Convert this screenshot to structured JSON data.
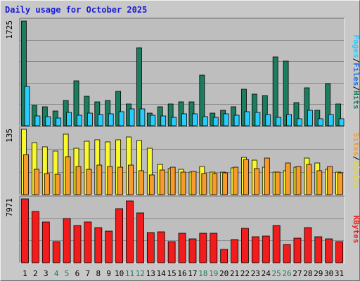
{
  "title": "Daily usage for October 2025",
  "colors": {
    "hits": "#1c7e60",
    "files": "#29ccfc",
    "pages": "#29ccfc",
    "visits": "#f8f82c",
    "sites": "#f89a2c",
    "kbytes": "#f21c1c",
    "weekend_label": "#1c7e60",
    "weekday_label": "#000000",
    "panel_bg": "#bebebe",
    "frame_bg": "#c8c8c8"
  },
  "right_labels": {
    "top": [
      {
        "text": "Pages",
        "color": "#29ccfc"
      },
      {
        "text": "/",
        "color": "#000000"
      },
      {
        "text": "Files",
        "color": "#1a6ee6"
      },
      {
        "text": "/",
        "color": "#000000"
      },
      {
        "text": "Hits",
        "color": "#1c7e60"
      }
    ],
    "middle": [
      {
        "text": "Sites",
        "color": "#f89a2c"
      },
      {
        "text": "/",
        "color": "#000000"
      },
      {
        "text": "Visits",
        "color": "#e8d81c"
      }
    ],
    "bottom": [
      {
        "text": "KBytes",
        "color": "#f21c1c"
      }
    ]
  },
  "chart_data": [
    {
      "type": "bar",
      "panel": "hits-files-pages",
      "y_max_label": "1725",
      "ylim": [
        0,
        1725
      ],
      "categories": [
        "1",
        "2",
        "3",
        "4",
        "5",
        "6",
        "7",
        "8",
        "9",
        "10",
        "11",
        "12",
        "13",
        "14",
        "15",
        "16",
        "17",
        "18",
        "19",
        "20",
        "21",
        "22",
        "23",
        "24",
        "25",
        "26",
        "27",
        "28",
        "29",
        "30",
        "31"
      ],
      "series": [
        {
          "name": "Hits",
          "values": [
            1725,
            340,
            310,
            240,
            420,
            740,
            490,
            390,
            420,
            570,
            360,
            1290,
            210,
            310,
            360,
            390,
            390,
            830,
            210,
            250,
            310,
            600,
            520,
            500,
            1140,
            1060,
            380,
            620,
            250,
            700,
            360
          ]
        },
        {
          "name": "Files",
          "values": [
            650,
            160,
            150,
            130,
            220,
            170,
            210,
            190,
            200,
            230,
            280,
            280,
            170,
            160,
            140,
            200,
            200,
            150,
            140,
            200,
            170,
            230,
            220,
            180,
            140,
            180,
            110,
            250,
            110,
            180,
            110
          ]
        }
      ],
      "weekend_days": [
        "4",
        "5",
        "11",
        "12",
        "18",
        "19",
        "25",
        "26"
      ]
    },
    {
      "type": "bar",
      "panel": "visits-sites",
      "y_max_label": "135",
      "ylim": [
        0,
        135
      ],
      "categories": [
        "1",
        "2",
        "3",
        "4",
        "5",
        "6",
        "7",
        "8",
        "9",
        "10",
        "11",
        "12",
        "13",
        "14",
        "15",
        "16",
        "17",
        "18",
        "19",
        "20",
        "21",
        "22",
        "23",
        "24",
        "25",
        "26",
        "27",
        "28",
        "29",
        "30",
        "31"
      ],
      "series": [
        {
          "name": "Visits",
          "values": [
            135,
            108,
            99,
            90,
            125,
            96,
            111,
            113,
            109,
            113,
            119,
            112,
            96,
            63,
            53,
            52,
            46,
            58,
            47,
            46,
            55,
            77,
            71,
            56,
            47,
            50,
            56,
            75,
            66,
            52,
            46
          ]
        },
        {
          "name": "Sites",
          "values": [
            83,
            52,
            43,
            42,
            79,
            58,
            52,
            61,
            58,
            57,
            61,
            49,
            41,
            51,
            56,
            46,
            48,
            43,
            43,
            45,
            56,
            72,
            53,
            76,
            46,
            66,
            58,
            62,
            50,
            58,
            45
          ]
        }
      ]
    },
    {
      "type": "bar",
      "panel": "kbytes",
      "y_max_label": "7971",
      "ylim": [
        0,
        7971
      ],
      "categories": [
        "1",
        "2",
        "3",
        "4",
        "5",
        "6",
        "7",
        "8",
        "9",
        "10",
        "11",
        "12",
        "13",
        "14",
        "15",
        "16",
        "17",
        "18",
        "19",
        "20",
        "21",
        "22",
        "23",
        "24",
        "25",
        "26",
        "27",
        "28",
        "29",
        "30",
        "31"
      ],
      "series": [
        {
          "name": "KBytes",
          "values": [
            7971,
            6400,
            5050,
            2650,
            5500,
            4600,
            5100,
            4400,
            3950,
            6750,
            7700,
            6250,
            3800,
            3850,
            2650,
            3700,
            2950,
            3700,
            3700,
            1650,
            2900,
            4250,
            3250,
            3350,
            4600,
            2300,
            3050,
            4350,
            3200,
            2950,
            2650
          ]
        }
      ]
    }
  ]
}
